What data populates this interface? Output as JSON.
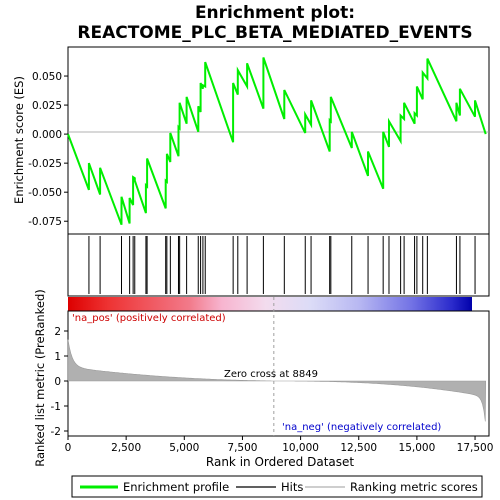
{
  "chart_data": {
    "type": "line",
    "title_line1": "Enrichment plot:",
    "title_line2": "REACTOME_PLC_BETA_MEDIATED_EVENTS",
    "xlabel": "Rank in Ordered Dataset",
    "ylabel_top": "Enrichment score (ES)",
    "ylabel_bottom": "Ranked list metric (PreRanked)",
    "x_ticks": [
      0,
      2500,
      5000,
      7500,
      10000,
      12500,
      15000,
      17500
    ],
    "x_tick_labels": [
      "0",
      "2,500",
      "5,000",
      "7,500",
      "10,000",
      "12,500",
      "15,000",
      "17,500"
    ],
    "xlim": [
      0,
      18100
    ],
    "es_yticks": [
      -0.075,
      -0.05,
      -0.025,
      0.0,
      0.025,
      0.05
    ],
    "es_ytick_labels": [
      "-0.075",
      "-0.050",
      "-0.025",
      "0.000",
      "0.025",
      "0.050"
    ],
    "es_ylim": [
      -0.086,
      0.075
    ],
    "rank_yticks": [
      -2,
      -1,
      0,
      1,
      2
    ],
    "rank_ytick_labels": [
      "-2",
      "-1",
      "0",
      "1",
      "2"
    ],
    "rank_ylim": [
      -2.2,
      2.8
    ],
    "zero_cross_rank": 8849,
    "zero_cross_label": "Zero cross at 8849",
    "pos_label": "'na_pos' (positively correlated)",
    "neg_label": "'na_neg' (negatively correlated)",
    "legend": [
      "Enrichment profile",
      "Hits",
      "Ranking metric scores"
    ],
    "colors": {
      "profile": "#00ee00",
      "hits": "#000000",
      "metric": "#b0b0b0",
      "zero_line": "#a0a0a0",
      "pos_text": "#cc0000",
      "neg_text": "#0000cc"
    },
    "hits": [
      900,
      1380,
      2300,
      2650,
      2800,
      2870,
      3350,
      3400,
      4200,
      4250,
      4400,
      4750,
      4800,
      5100,
      5600,
      5700,
      5800,
      5900,
      7100,
      7300,
      7700,
      8400,
      9300,
      10200,
      10450,
      11250,
      11300,
      12200,
      12900,
      13550,
      13800,
      14300,
      14450,
      14900,
      15000,
      15250,
      15450,
      16700,
      16850,
      17500
    ],
    "es_points": [
      [
        0,
        0.0
      ],
      [
        900,
        -0.048
      ],
      [
        900,
        -0.025
      ],
      [
        1380,
        -0.052
      ],
      [
        1380,
        -0.029
      ],
      [
        2300,
        -0.078
      ],
      [
        2300,
        -0.054
      ],
      [
        2650,
        -0.077
      ],
      [
        2650,
        -0.055
      ],
      [
        2800,
        -0.061
      ],
      [
        2800,
        -0.037
      ],
      [
        2870,
        -0.038
      ],
      [
        2870,
        -0.04
      ],
      [
        3350,
        -0.068
      ],
      [
        3350,
        -0.044
      ],
      [
        3400,
        -0.045
      ],
      [
        3400,
        -0.021
      ],
      [
        4200,
        -0.064
      ],
      [
        4200,
        -0.04
      ],
      [
        4250,
        -0.041
      ],
      [
        4250,
        -0.017
      ],
      [
        4400,
        -0.024
      ],
      [
        4400,
        0.001
      ],
      [
        4750,
        -0.019
      ],
      [
        4750,
        0.006
      ],
      [
        4800,
        0.005
      ],
      [
        4800,
        0.027
      ],
      [
        5100,
        0.009
      ],
      [
        5100,
        0.032
      ],
      [
        5600,
        0.002
      ],
      [
        5600,
        0.024
      ],
      [
        5700,
        0.019
      ],
      [
        5700,
        0.044
      ],
      [
        5800,
        0.039
      ],
      [
        5800,
        0.042
      ],
      [
        5900,
        0.041
      ],
      [
        5900,
        0.062
      ],
      [
        7100,
        -0.007
      ],
      [
        7100,
        0.044
      ],
      [
        7300,
        0.034
      ],
      [
        7300,
        0.055
      ],
      [
        7700,
        0.041
      ],
      [
        7700,
        0.061
      ],
      [
        8400,
        0.022
      ],
      [
        8400,
        0.066
      ],
      [
        9300,
        0.013
      ],
      [
        9300,
        0.038
      ],
      [
        10200,
        0.001
      ],
      [
        10200,
        0.017
      ],
      [
        10450,
        0.008
      ],
      [
        10450,
        0.029
      ],
      [
        11250,
        -0.015
      ],
      [
        11250,
        0.012
      ],
      [
        11300,
        0.011
      ],
      [
        11300,
        0.032
      ],
      [
        12200,
        -0.012
      ],
      [
        12200,
        0.002
      ],
      [
        12900,
        -0.036
      ],
      [
        12900,
        -0.015
      ],
      [
        13550,
        -0.047
      ],
      [
        13550,
        0.002
      ],
      [
        13800,
        -0.011
      ],
      [
        13800,
        0.011
      ],
      [
        14300,
        -0.006
      ],
      [
        14300,
        0.016
      ],
      [
        14450,
        0.013
      ],
      [
        14450,
        0.027
      ],
      [
        14900,
        0.009
      ],
      [
        14900,
        0.018
      ],
      [
        15000,
        0.016
      ],
      [
        15000,
        0.041
      ],
      [
        15250,
        0.03
      ],
      [
        15250,
        0.053
      ],
      [
        15450,
        0.048
      ],
      [
        15450,
        0.065
      ],
      [
        16700,
        0.011
      ],
      [
        16700,
        0.027
      ],
      [
        16850,
        0.016
      ],
      [
        16850,
        0.039
      ],
      [
        17500,
        0.015
      ],
      [
        17500,
        0.029
      ],
      [
        17960,
        0.0
      ]
    ]
  }
}
